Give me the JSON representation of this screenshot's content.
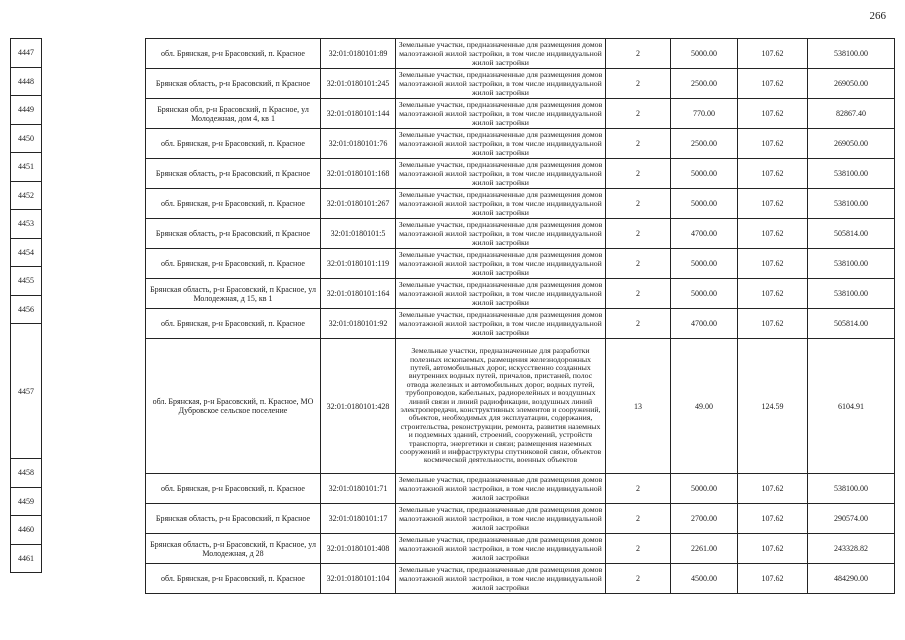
{
  "page_number": "266",
  "table": {
    "rows": [
      {
        "id": "4447",
        "location": "обл. Брянская, р-н Брасовский, п. Красное",
        "cadastral": "32:01:0180101:89",
        "description": "Земельные участки, предназначенные для размещения домов малоэтажной жилой застройки, в том числе индивидуальной жилой застройки",
        "count": "2",
        "area": "5000.00",
        "rate": "107.62",
        "value": "538100.00",
        "tall": false
      },
      {
        "id": "4448",
        "location": "Брянская область, р-н Брасовский, п Красное",
        "cadastral": "32:01:0180101:245",
        "description": "Земельные участки, предназначенные для размещения домов малоэтажной жилой застройки, в том числе индивидуальной жилой застройки",
        "count": "2",
        "area": "2500.00",
        "rate": "107.62",
        "value": "269050.00",
        "tall": false
      },
      {
        "id": "4449",
        "location": "Брянская обл, р-н Брасовский, п Красное, ул Молодежная, дом 4, кв 1",
        "cadastral": "32:01:0180101:144",
        "description": "Земельные участки, предназначенные для размещения домов малоэтажной жилой застройки, в том числе индивидуальной жилой застройки",
        "count": "2",
        "area": "770.00",
        "rate": "107.62",
        "value": "82867.40",
        "tall": false
      },
      {
        "id": "4450",
        "location": "обл. Брянская, р-н Брасовский, п. Красное",
        "cadastral": "32:01:0180101:76",
        "description": "Земельные участки, предназначенные для размещения домов малоэтажной жилой застройки, в том числе индивидуальной жилой застройки",
        "count": "2",
        "area": "2500.00",
        "rate": "107.62",
        "value": "269050.00",
        "tall": false
      },
      {
        "id": "4451",
        "location": "Брянская область, р-н Брасовский, п Красное",
        "cadastral": "32:01:0180101:168",
        "description": "Земельные участки, предназначенные для размещения домов малоэтажной жилой застройки, в том числе индивидуальной жилой застройки",
        "count": "2",
        "area": "5000.00",
        "rate": "107.62",
        "value": "538100.00",
        "tall": false
      },
      {
        "id": "4452",
        "location": "обл. Брянская, р-н Брасовский, п. Красное",
        "cadastral": "32:01:0180101:267",
        "description": "Земельные участки, предназначенные для размещения домов малоэтажной жилой застройки, в том числе индивидуальной жилой застройки",
        "count": "2",
        "area": "5000.00",
        "rate": "107.62",
        "value": "538100.00",
        "tall": false
      },
      {
        "id": "4453",
        "location": "Брянская область, р-н Брасовский, п Красное",
        "cadastral": "32:01:0180101:5",
        "description": "Земельные участки, предназначенные для размещения домов малоэтажной жилой застройки, в том числе индивидуальной жилой застройки",
        "count": "2",
        "area": "4700.00",
        "rate": "107.62",
        "value": "505814.00",
        "tall": false
      },
      {
        "id": "4454",
        "location": "обл. Брянская, р-н Брасовский, п. Красное",
        "cadastral": "32:01:0180101:119",
        "description": "Земельные участки, предназначенные для размещения домов малоэтажной жилой застройки, в том числе индивидуальной жилой застройки",
        "count": "2",
        "area": "5000.00",
        "rate": "107.62",
        "value": "538100.00",
        "tall": false
      },
      {
        "id": "4455",
        "location": "Брянская область, р-н Брасовский, п Красное, ул Молодежная, д 15, кв 1",
        "cadastral": "32:01:0180101:164",
        "description": "Земельные участки, предназначенные для размещения домов малоэтажной жилой застройки, в том числе индивидуальной жилой застройки",
        "count": "2",
        "area": "5000.00",
        "rate": "107.62",
        "value": "538100.00",
        "tall": false
      },
      {
        "id": "4456",
        "location": "обл. Брянская, р-н Брасовский, п. Красное",
        "cadastral": "32:01:0180101:92",
        "description": "Земельные участки, предназначенные для размещения домов малоэтажной жилой застройки, в том числе индивидуальной жилой застройки",
        "count": "2",
        "area": "4700.00",
        "rate": "107.62",
        "value": "505814.00",
        "tall": false
      },
      {
        "id": "4457",
        "location": "обл. Брянская, р-н Брасовский, п. Красное, МО Дубровское сельское поселение",
        "cadastral": "32:01:0180101:428",
        "description": "Земельные участки, предназначенные для разработки полезных ископаемых, размещения железнодорожных путей, автомобильных дорог, искусственно созданных внутренних водных путей, причалов, пристаней, полос отвода железных и автомобильных дорог, водных путей, трубопроводов, кабельных, радиорелейных и воздушных линий связи и линий радиофикации, воздушных линий электропередачи, конструктивных элементов и сооружений, объектов, необходимых для эксплуатации, содержания, строительства, реконструкции, ремонта, развития наземных и подземных зданий, строений, сооружений, устройств транспорта, энергетики и связи; размещения наземных сооружений и инфраструктуры спутниковой связи, объектов космической деятельности, военных объектов",
        "count": "13",
        "area": "49.00",
        "rate": "124.59",
        "value": "6104.91",
        "tall": true
      },
      {
        "id": "4458",
        "location": "обл. Брянская, р-н Брасовский, п. Красное",
        "cadastral": "32:01:0180101:71",
        "description": "Земельные участки, предназначенные для размещения домов малоэтажной жилой застройки, в том числе индивидуальной жилой застройки",
        "count": "2",
        "area": "5000.00",
        "rate": "107.62",
        "value": "538100.00",
        "tall": false
      },
      {
        "id": "4459",
        "location": "Брянская область, р-н Брасовский, п Красное",
        "cadastral": "32:01:0180101:17",
        "description": "Земельные участки, предназначенные для размещения домов малоэтажной жилой застройки, в том числе индивидуальной жилой застройки",
        "count": "2",
        "area": "2700.00",
        "rate": "107.62",
        "value": "290574.00",
        "tall": false
      },
      {
        "id": "4460",
        "location": "Брянская область, р-н Брасовский, п Красное, ул Молодежная, д 28",
        "cadastral": "32:01:0180101:408",
        "description": "Земельные участки, предназначенные для размещения домов малоэтажной жилой застройки, в том числе индивидуальной жилой застройки",
        "count": "2",
        "area": "2261.00",
        "rate": "107.62",
        "value": "243328.82",
        "tall": false
      },
      {
        "id": "4461",
        "location": "обл. Брянская, р-н Брасовский, п. Красное",
        "cadastral": "32:01:0180101:104",
        "description": "Земельные участки, предназначенные для размещения домов малоэтажной жилой застройки, в том числе индивидуальной жилой застройки",
        "count": "2",
        "area": "4500.00",
        "rate": "107.62",
        "value": "484290.00",
        "tall": false
      }
    ]
  }
}
